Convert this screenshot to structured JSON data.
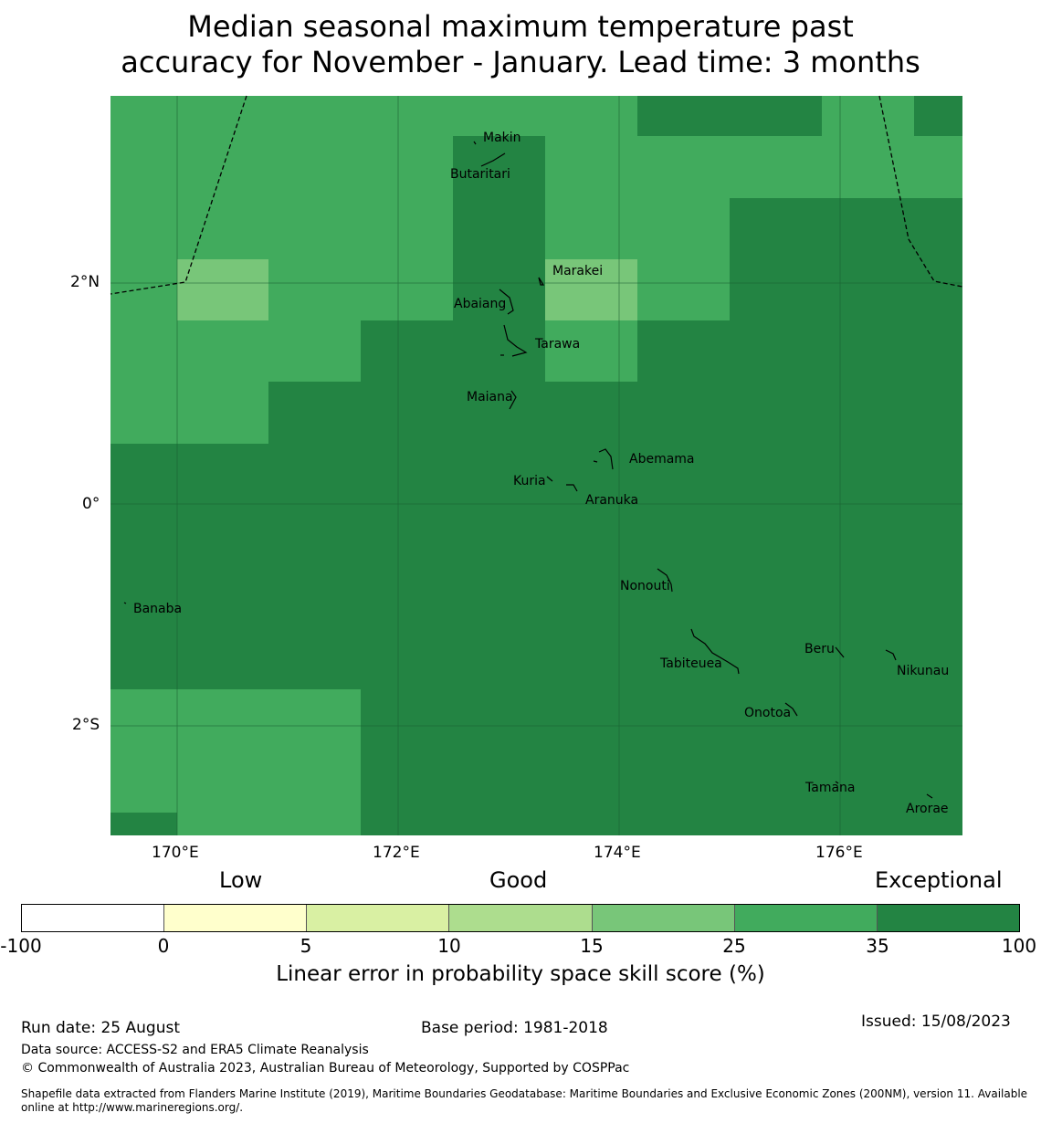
{
  "title": {
    "line1": "Median seasonal maximum temperature past",
    "line2": "accuracy for November - January. Lead time: 3 months"
  },
  "map": {
    "x_ticks": [
      "170°E",
      "172°E",
      "174°E",
      "176°E"
    ],
    "y_ticks": [
      "2°N",
      "0°",
      "2°S"
    ],
    "islands": [
      "Makin",
      "Butaritari",
      "Marakei",
      "Abaiang",
      "Tarawa",
      "Maiana",
      "Abemama",
      "Kuria",
      "Aranuka",
      "Nonouti",
      "Banaba",
      "Beru",
      "Nikunau",
      "Tabiteuea",
      "Onotoa",
      "Tamana",
      "Arorae"
    ]
  },
  "legend": {
    "categories": [
      "Low",
      "Good",
      "Exceptional"
    ],
    "bins": [
      "-100",
      "0",
      "5",
      "10",
      "15",
      "25",
      "35",
      "100"
    ],
    "colors": [
      "#ffffff",
      "#ffffcc",
      "#d9f0a3",
      "#addd8e",
      "#78c679",
      "#41ab5d",
      "#238443"
    ],
    "label": "Linear error in probability space skill score (%)"
  },
  "footer": {
    "run_date": "Run date: 25 August",
    "base_period": "Base period: 1981-2018",
    "issued": "Issued: 15/08/2023",
    "data_source": "Data source: ACCESS-S2 and ERA5 Climate Reanalysis",
    "copyright": "© Commonwealth of Australia 2023, Australian Bureau of Meteorology, Supported by COSPPac",
    "shapefile": "Shapefile data extracted from Flanders Marine Institute (2019), Maritime Boundaries Geodatabase: Maritime Boundaries and Exclusive Economic Zones (200NM), version 11. Available online at http://www.marineregions.org/."
  }
}
